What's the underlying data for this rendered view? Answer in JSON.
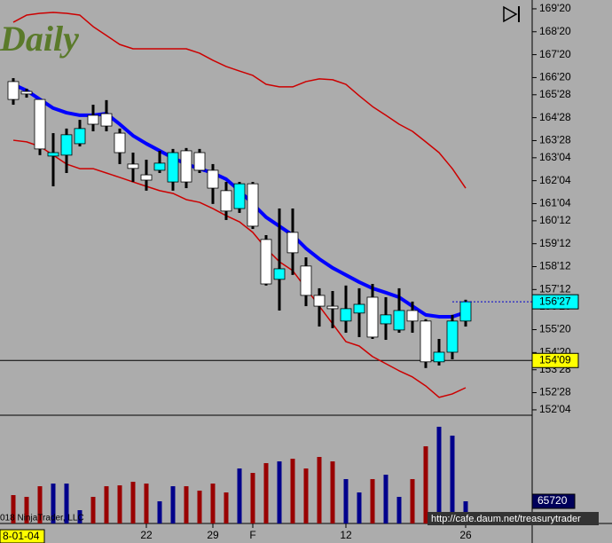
{
  "chart_data": {
    "type": "candlestick",
    "title": "Daily",
    "date_label": "8-01-04",
    "copyright": "018 NinjaTrader, LLC",
    "url": "http://cafe.daum.net/treasurytrader",
    "categories": [
      null,
      null,
      null,
      null,
      null,
      null,
      null,
      null,
      null,
      null,
      "22",
      null,
      null,
      null,
      null,
      "29",
      null,
      null,
      "F",
      null,
      null,
      null,
      null,
      null,
      null,
      "12",
      null,
      null,
      null,
      null,
      null,
      null,
      null,
      null,
      "26"
    ],
    "open": [
      166.45,
      166.02,
      165.67,
      163.2,
      163.24,
      163.74,
      164.98,
      165.05,
      164.2,
      162.85,
      162.38,
      162.58,
      162.07,
      163.43,
      163.35,
      162.58,
      161.69,
      160.91,
      161.99,
      159.56,
      157.82,
      159.87,
      158.4,
      157.12,
      156.65,
      156.0,
      156.35,
      157.04,
      155.88,
      155.61,
      156.46,
      156.0,
      154.22,
      154.64,
      156.0
    ],
    "high": [
      166.6,
      166.14,
      165.67,
      164.2,
      164.4,
      164.78,
      165.44,
      165.64,
      164.4,
      163.35,
      163.04,
      163.43,
      163.51,
      163.55,
      163.51,
      162.85,
      162.07,
      162.07,
      162.07,
      159.75,
      160.91,
      160.91,
      158.78,
      157.43,
      157.31,
      157.55,
      157.43,
      157.62,
      157.04,
      157.43,
      156.85,
      156.08,
      155.22,
      156.27,
      156.93
    ],
    "low": [
      165.44,
      165.75,
      163.24,
      161.88,
      162.46,
      163.62,
      164.28,
      164.28,
      162.85,
      162.07,
      161.69,
      162.46,
      161.69,
      161.8,
      162.46,
      161.11,
      160.41,
      160.72,
      160.02,
      157.55,
      156.46,
      158.01,
      156.65,
      155.76,
      155.69,
      155.49,
      155.3,
      155.22,
      155.18,
      155.49,
      155.49,
      153.95,
      154.06,
      154.33,
      155.76
    ],
    "close": [
      165.67,
      165.91,
      163.51,
      163.35,
      164.13,
      164.4,
      164.59,
      164.51,
      163.35,
      162.66,
      162.15,
      162.89,
      163.35,
      162.07,
      162.58,
      161.8,
      160.8,
      161.99,
      160.14,
      157.62,
      158.28,
      158.98,
      157.12,
      156.65,
      156.54,
      156.54,
      156.73,
      155.3,
      156.27,
      156.46,
      156.0,
      154.22,
      154.64,
      156.0,
      156.84
    ],
    "up_color": "#00ffff",
    "down_color": "#ffffff",
    "bands": [
      {
        "color": "#0000ff",
        "width": 4,
        "values": [
          166.33,
          166.06,
          165.67,
          165.29,
          165.09,
          164.98,
          164.98,
          165.05,
          164.59,
          164.09,
          163.74,
          163.43,
          163.12,
          162.85,
          162.65,
          162.46,
          162.19,
          161.69,
          161.11,
          160.53,
          160.14,
          159.75,
          159.17,
          158.71,
          158.32,
          158.01,
          157.7,
          157.43,
          157.24,
          157.04,
          156.65,
          156.27,
          156.19,
          156.19,
          156.38
        ]
      },
      {
        "color": "#cc0000",
        "width": 1.5,
        "values": [
          169.04,
          169.35,
          169.43,
          169.47,
          169.43,
          169.35,
          168.85,
          168.46,
          168.07,
          167.88,
          167.88,
          167.88,
          167.88,
          167.88,
          167.69,
          167.38,
          167.11,
          166.91,
          166.72,
          166.33,
          166.22,
          166.22,
          166.45,
          166.57,
          166.53,
          166.33,
          165.83,
          165.36,
          164.98,
          164.59,
          164.28,
          163.82,
          163.35,
          162.65,
          161.8
        ]
      },
      {
        "color": "#cc0000",
        "width": 1.5,
        "values": [
          163.89,
          163.82,
          163.62,
          163.24,
          162.85,
          162.65,
          162.65,
          162.46,
          162.27,
          162.07,
          161.88,
          161.69,
          161.57,
          161.3,
          161.18,
          160.91,
          160.6,
          160.33,
          159.87,
          159.17,
          158.59,
          158.2,
          157.43,
          156.65,
          155.88,
          155.1,
          154.91,
          154.45,
          154.14,
          153.83,
          153.56,
          153.17,
          152.67,
          152.82,
          153.09
        ]
      }
    ],
    "ylim": [
      151.89,
      170.01
    ],
    "yticks": [
      {
        "value": 169.625,
        "label": "169'20"
      },
      {
        "value": 168.625,
        "label": "168'20"
      },
      {
        "value": 167.625,
        "label": "167'20"
      },
      {
        "value": 166.625,
        "label": "166'20"
      },
      {
        "value": 165.875,
        "label": "165'28"
      },
      {
        "value": 164.875,
        "label": "164'28"
      },
      {
        "value": 163.875,
        "label": "163'28"
      },
      {
        "value": 163.125,
        "label": "163'04"
      },
      {
        "value": 162.125,
        "label": "162'04"
      },
      {
        "value": 161.125,
        "label": "161'04"
      },
      {
        "value": 160.375,
        "label": "160'12"
      },
      {
        "value": 159.375,
        "label": "159'12"
      },
      {
        "value": 158.375,
        "label": "158'12"
      },
      {
        "value": 157.375,
        "label": "157'12"
      },
      {
        "value": 156.625,
        "label": "156'20"
      },
      {
        "value": 155.625,
        "label": "155'20"
      },
      {
        "value": 154.625,
        "label": "154'20"
      },
      {
        "value": 153.875,
        "label": "153'28"
      },
      {
        "value": 152.875,
        "label": "152'28"
      },
      {
        "value": 152.125,
        "label": "152'04"
      }
    ],
    "last_price": {
      "value": 156.84,
      "label": "156'27"
    },
    "marker": {
      "value": 154.28,
      "label": "154'09"
    },
    "volume": {
      "values": [
        84100,
        78900,
        110400,
        118300,
        118300,
        39400,
        78900,
        110400,
        113000,
        123600,
        118300,
        65700,
        110400,
        110400,
        97300,
        118300,
        92000,
        163000,
        149900,
        178800,
        184000,
        191900,
        163000,
        197200,
        184000,
        131500,
        92000,
        131500,
        144600,
        78900,
        131500,
        228700,
        286600,
        260300,
        65720
      ],
      "up_color": "#00008b",
      "down_color": "#990000",
      "ylim": [
        0,
        315500
      ],
      "last": {
        "value": 65720,
        "label": "65720"
      }
    }
  }
}
